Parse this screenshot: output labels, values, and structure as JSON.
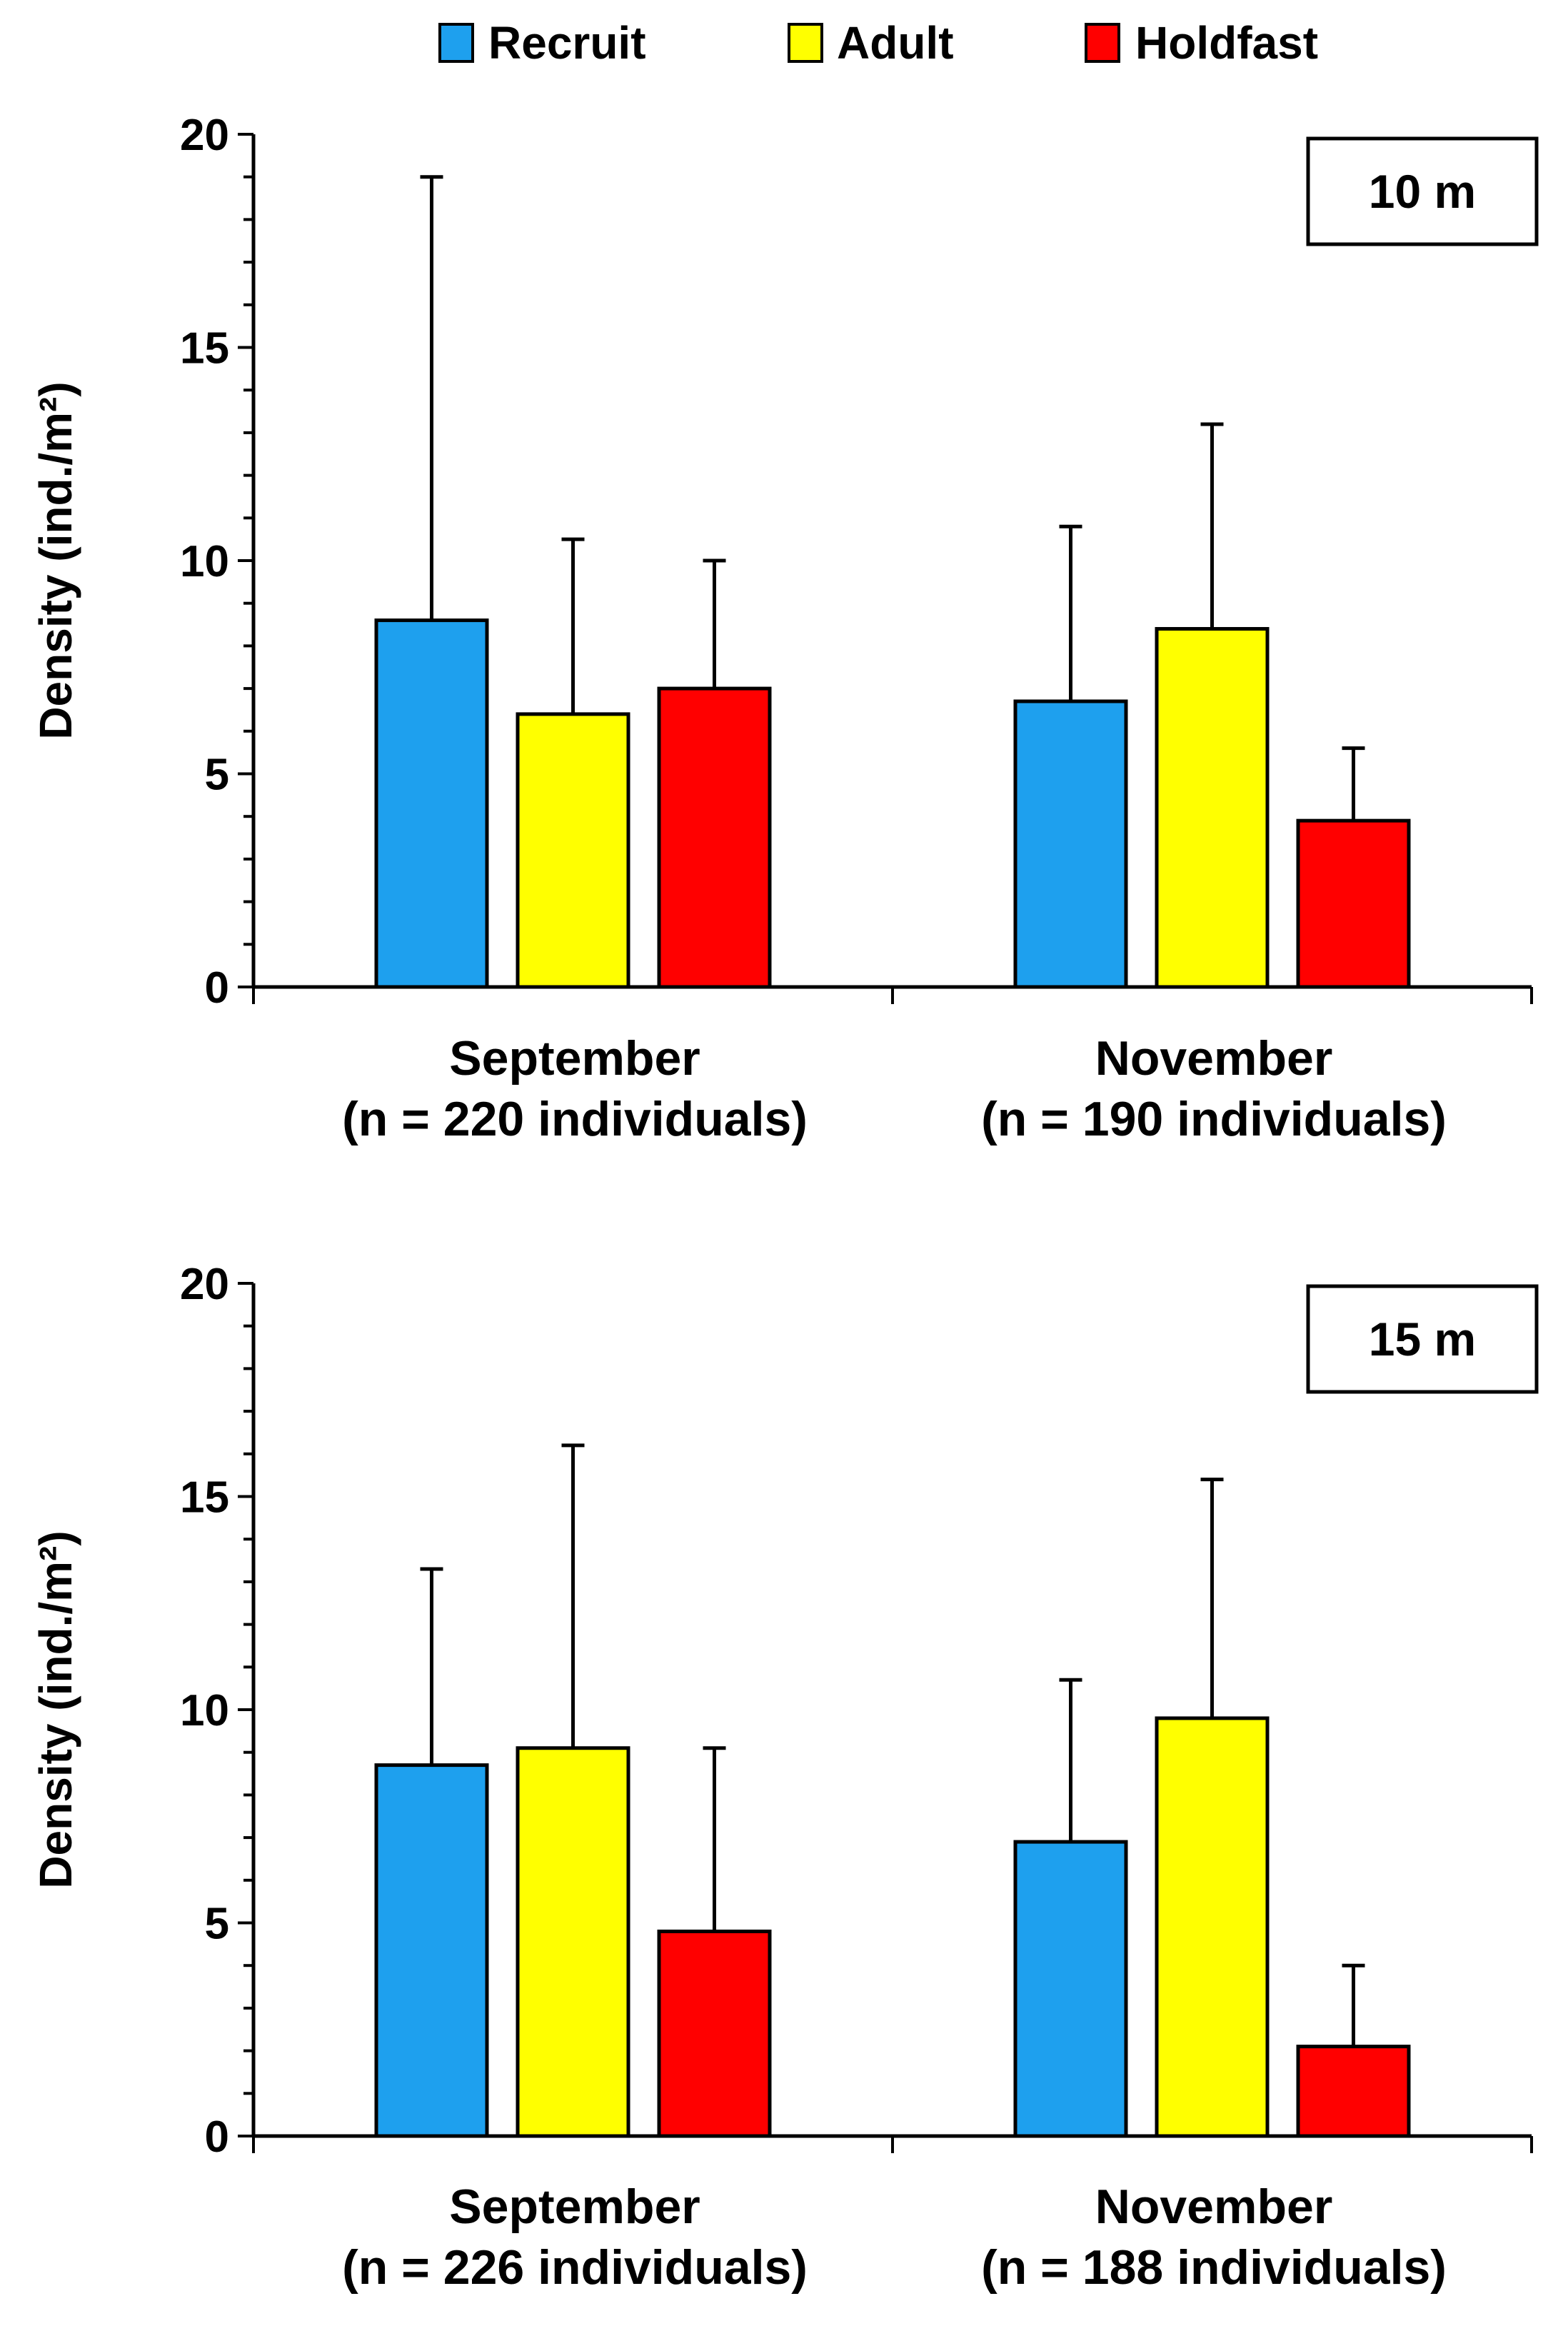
{
  "legend": {
    "placement": "top-center",
    "entries": [
      {
        "name": "Recruit",
        "color": "#1ea0ee"
      },
      {
        "name": "Adult",
        "color": "#ffff00"
      },
      {
        "name": "Holdfast",
        "color": "#ff0000"
      }
    ]
  },
  "chart_data": [
    {
      "type": "bar",
      "panel_label": "10 m",
      "ylabel": "Density (ind./m²)",
      "ylim": [
        0,
        20
      ],
      "yticks": [
        0,
        5,
        10,
        15,
        20
      ],
      "grid": false,
      "categories": [
        {
          "line1": "September",
          "line2": "(n = 220 individuals)"
        },
        {
          "line1": "November",
          "line2": "(n = 190 individuals)"
        }
      ],
      "series": [
        {
          "name": "Recruit",
          "color": "#1ea0ee",
          "values": [
            8.6,
            6.7
          ],
          "error": [
            10.4,
            4.1
          ]
        },
        {
          "name": "Adult",
          "color": "#ffff00",
          "values": [
            6.4,
            8.4
          ],
          "error": [
            4.1,
            4.8
          ]
        },
        {
          "name": "Holdfast",
          "color": "#ff0000",
          "values": [
            7.0,
            3.9
          ],
          "error": [
            3.0,
            1.7
          ]
        }
      ]
    },
    {
      "type": "bar",
      "panel_label": "15 m",
      "ylabel": "Density (ind./m²)",
      "ylim": [
        0,
        20
      ],
      "yticks": [
        0,
        5,
        10,
        15,
        20
      ],
      "grid": false,
      "categories": [
        {
          "line1": "September",
          "line2": "(n = 226 individuals)"
        },
        {
          "line1": "November",
          "line2": "(n = 188 individuals)"
        }
      ],
      "series": [
        {
          "name": "Recruit",
          "color": "#1ea0ee",
          "values": [
            8.7,
            6.9
          ],
          "error": [
            4.6,
            3.8
          ]
        },
        {
          "name": "Adult",
          "color": "#ffff00",
          "values": [
            9.1,
            9.8
          ],
          "error": [
            7.1,
            5.6
          ]
        },
        {
          "name": "Holdfast",
          "color": "#ff0000",
          "values": [
            4.8,
            2.1
          ],
          "error": [
            4.3,
            1.9
          ]
        }
      ]
    }
  ]
}
